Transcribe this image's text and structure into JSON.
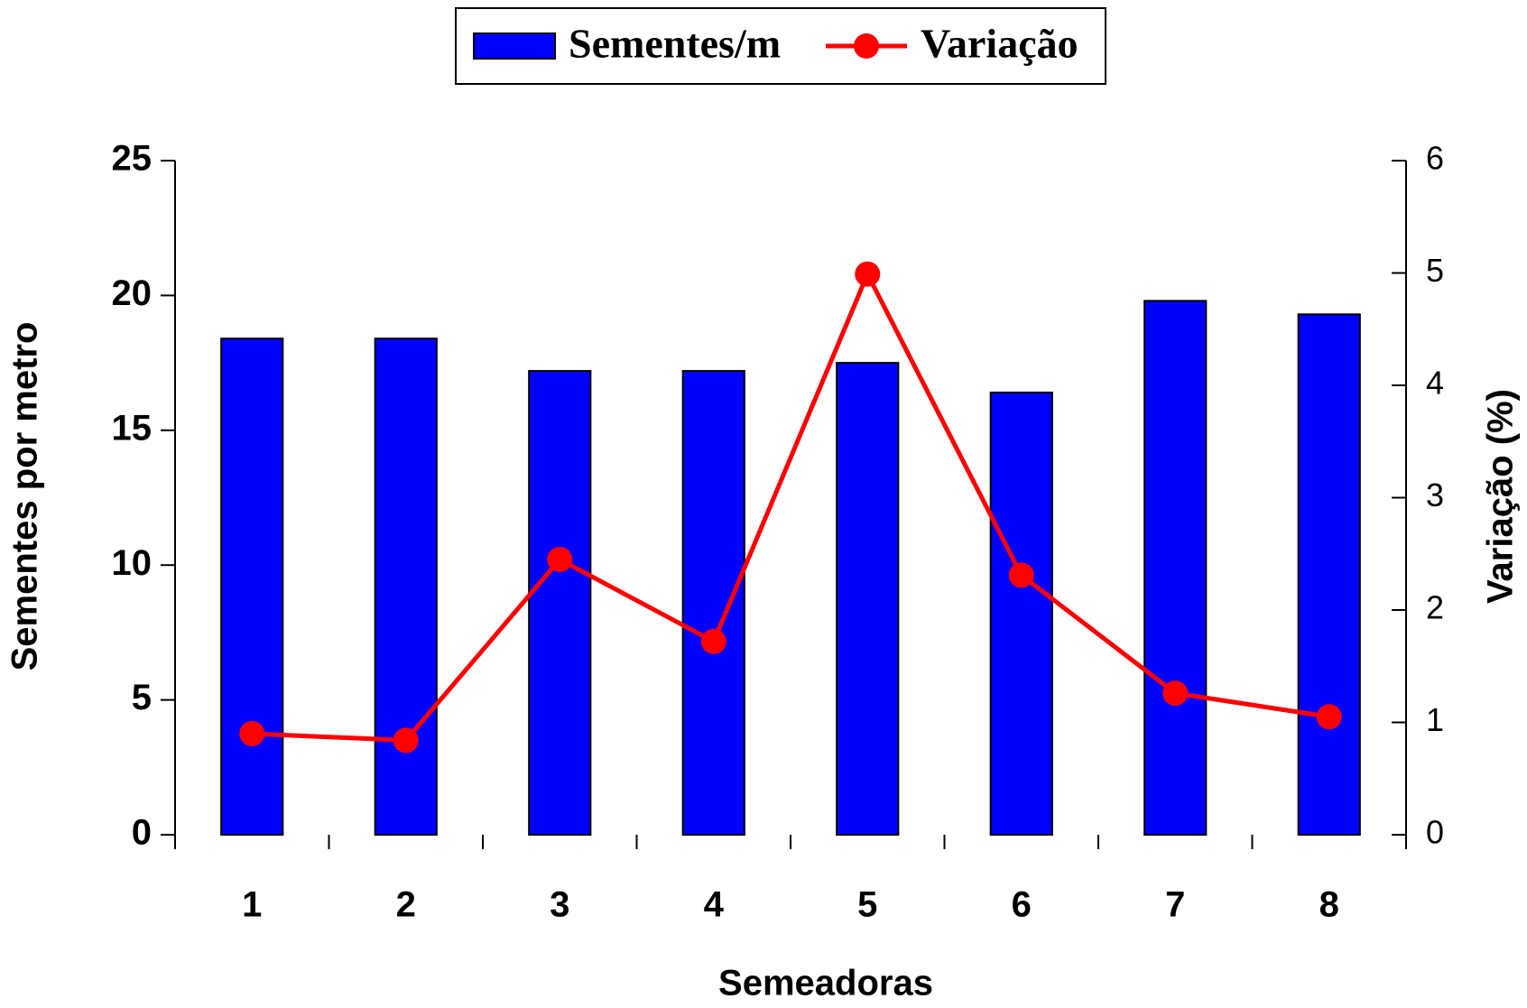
{
  "chart_data": {
    "type": "bar-line",
    "x_label": "Semeadoras",
    "y_label": "Sementes por metro",
    "y2_label": "Variação (%)",
    "categories": [
      "1",
      "2",
      "3",
      "4",
      "5",
      "6",
      "7",
      "8"
    ],
    "series": [
      {
        "name": "Sementes/m",
        "type": "bar",
        "color": "#0000ff",
        "values": [
          18.4,
          18.4,
          17.2,
          17.2,
          17.5,
          16.4,
          19.8,
          19.3
        ]
      },
      {
        "name": "Variação",
        "type": "line",
        "axis": "y2",
        "color": "#ff0000",
        "values": [
          0.9,
          0.84,
          2.45,
          1.72,
          4.99,
          2.31,
          1.26,
          1.05
        ]
      }
    ],
    "ylim": [
      0,
      25
    ],
    "yticks": [
      0,
      5,
      10,
      15,
      20,
      25
    ],
    "y2lim": [
      0,
      6
    ],
    "y2ticks": [
      0,
      1,
      2,
      3,
      4,
      5,
      6
    ],
    "legend": "top"
  }
}
